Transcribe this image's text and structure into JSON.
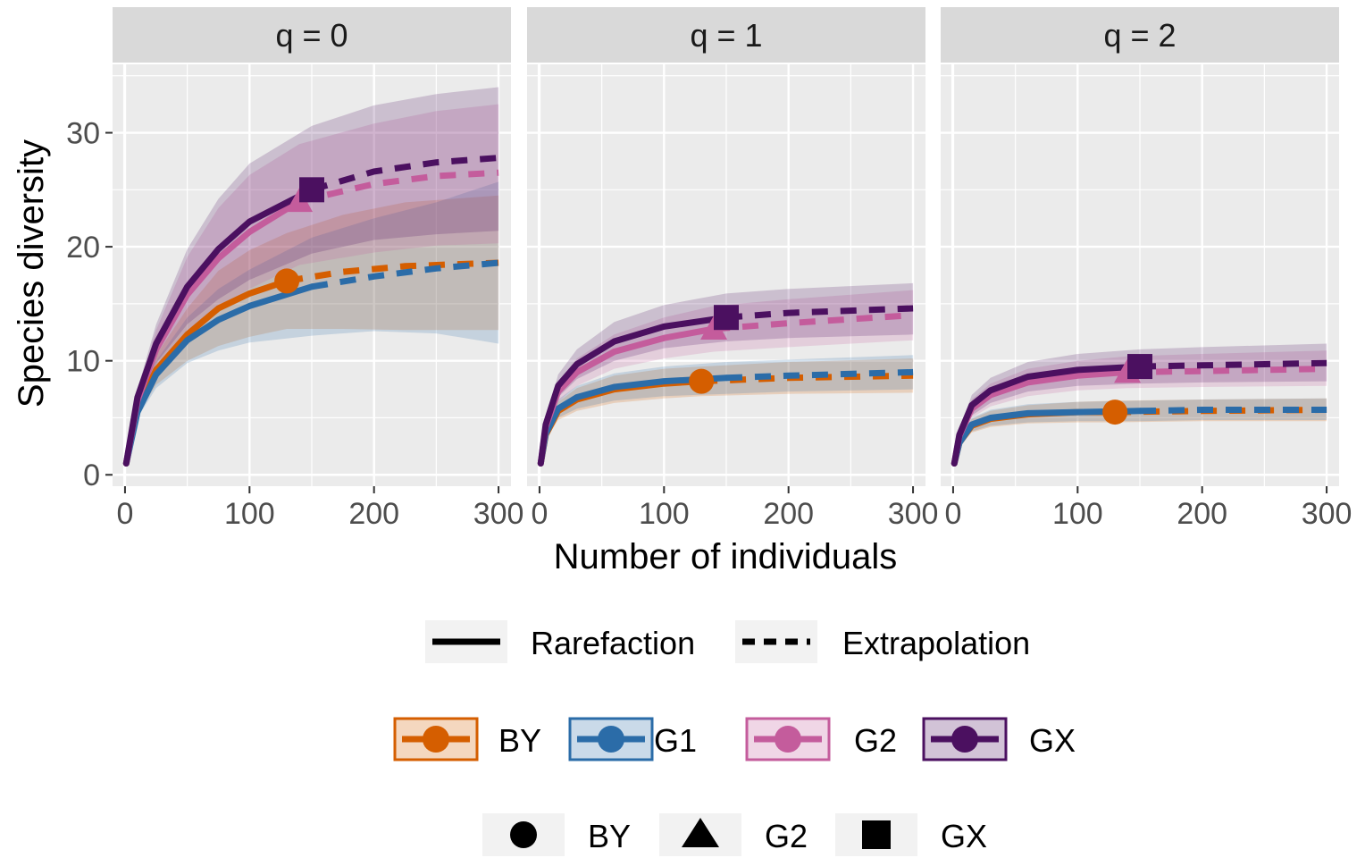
{
  "chart_data": {
    "type": "line",
    "xlabel": "Number of individuals",
    "ylabel": "Species diversity",
    "xlim": [
      -10,
      310
    ],
    "ylim": [
      -1,
      36
    ],
    "x_ticks": [
      0,
      100,
      200,
      300
    ],
    "x_tick_labels": [
      "0",
      "100",
      "200",
      "300"
    ],
    "y_ticks": [
      0,
      10,
      20,
      30
    ],
    "y_tick_labels": [
      "0",
      "10",
      "20",
      "30"
    ],
    "grid": true,
    "legend_position": "bottom",
    "colors": {
      "BY": "#D55E00",
      "G1": "#2B6CA8",
      "G2": "#C45C9C",
      "GX": "#4B1060",
      "panel_bg": "#EBEBEB",
      "strip_bg": "#D9D9D9",
      "grid": "#FFFFFF"
    },
    "panels": [
      {
        "label": "q = 0",
        "series": [
          {
            "name": "BY",
            "observed": [
              130,
              17.0
            ],
            "x": [
              1,
              10,
              25,
              50,
              75,
              100,
              130,
              175,
              225,
              300
            ],
            "y": [
              1.0,
              5.8,
              9.2,
              12.3,
              14.6,
              15.9,
              17.0,
              17.8,
              18.3,
              18.6
            ],
            "lower": [
              1.0,
              5.2,
              7.9,
              10.0,
              11.3,
              12.1,
              12.8,
              12.8,
              12.7,
              12.7
            ],
            "upper": [
              1.0,
              6.4,
              10.5,
              14.6,
              17.9,
              19.7,
              21.2,
              22.8,
              23.9,
              24.5
            ]
          },
          {
            "name": "G1",
            "observed": [
              150,
              16.5
            ],
            "x": [
              1,
              10,
              25,
              50,
              75,
              100,
              150,
              200,
              250,
              300
            ],
            "y": [
              1.0,
              5.5,
              8.8,
              11.8,
              13.6,
              14.8,
              16.5,
              17.4,
              18.1,
              18.6
            ],
            "lower": [
              1.0,
              5.0,
              7.6,
              9.8,
              10.9,
              11.6,
              12.2,
              12.6,
              12.4,
              11.5
            ],
            "upper": [
              1.0,
              6.0,
              10.0,
              13.8,
              16.3,
              18.0,
              20.8,
              22.5,
              23.9,
              25.7
            ]
          },
          {
            "name": "G2",
            "observed": [
              140,
              24.0
            ],
            "x": [
              1,
              10,
              25,
              50,
              75,
              100,
              140,
              200,
              250,
              300
            ],
            "y": [
              1.0,
              6.5,
              11.0,
              15.8,
              19.0,
              21.3,
              24.0,
              25.5,
              26.2,
              26.5
            ],
            "lower": [
              1.0,
              5.8,
              9.3,
              12.5,
              14.6,
              16.3,
              18.4,
              19.5,
              20.1,
              20.3
            ],
            "upper": [
              1.0,
              7.2,
              12.7,
              19.1,
              23.4,
              26.3,
              29.0,
              30.8,
              31.9,
              32.5
            ]
          },
          {
            "name": "GX",
            "observed": [
              150,
              25.0
            ],
            "x": [
              1,
              10,
              25,
              50,
              75,
              100,
              150,
              200,
              250,
              300
            ],
            "y": [
              1.0,
              6.8,
              11.5,
              16.5,
              19.8,
              22.2,
              25.0,
              26.6,
              27.4,
              27.8
            ],
            "lower": [
              1.0,
              6.1,
              9.8,
              13.2,
              15.4,
              17.1,
              19.4,
              20.6,
              21.1,
              21.4
            ],
            "upper": [
              1.0,
              7.5,
              13.2,
              19.8,
              24.2,
              27.3,
              30.6,
              32.4,
              33.4,
              34.0
            ]
          }
        ]
      },
      {
        "label": "q = 1",
        "series": [
          {
            "name": "BY",
            "observed": [
              130,
              8.2
            ],
            "x": [
              1,
              5,
              15,
              30,
              60,
              100,
              130,
              200,
              300
            ],
            "y": [
              1.0,
              3.5,
              5.6,
              6.6,
              7.5,
              8.0,
              8.2,
              8.5,
              8.7
            ],
            "lower": [
              1.0,
              3.1,
              4.8,
              5.6,
              6.3,
              6.7,
              6.9,
              7.1,
              7.2
            ],
            "upper": [
              1.0,
              3.9,
              6.4,
              7.6,
              8.7,
              9.3,
              9.5,
              9.9,
              10.2
            ]
          },
          {
            "name": "G1",
            "observed": [
              150,
              8.5
            ],
            "x": [
              1,
              5,
              15,
              30,
              60,
              100,
              150,
              200,
              300
            ],
            "y": [
              1.0,
              3.6,
              5.8,
              6.8,
              7.7,
              8.2,
              8.5,
              8.7,
              9.0
            ],
            "lower": [
              1.0,
              3.2,
              5.0,
              5.8,
              6.5,
              6.9,
              7.1,
              7.3,
              7.5
            ],
            "upper": [
              1.0,
              4.0,
              6.6,
              7.8,
              8.9,
              9.5,
              9.9,
              10.1,
              10.5
            ]
          },
          {
            "name": "G2",
            "observed": [
              140,
              12.8
            ],
            "x": [
              1,
              5,
              15,
              30,
              60,
              100,
              140,
              200,
              300
            ],
            "y": [
              1.0,
              4.2,
              7.3,
              9.0,
              10.8,
              12.0,
              12.8,
              13.3,
              14.0
            ],
            "lower": [
              1.0,
              3.8,
              6.4,
              7.8,
              9.3,
              10.2,
              10.8,
              11.2,
              11.8
            ],
            "upper": [
              1.0,
              4.6,
              8.2,
              10.2,
              12.3,
              13.8,
              14.8,
              15.4,
              16.2
            ]
          },
          {
            "name": "GX",
            "observed": [
              150,
              13.8
            ],
            "x": [
              1,
              5,
              15,
              30,
              60,
              100,
              150,
              200,
              300
            ],
            "y": [
              1.0,
              4.4,
              7.8,
              9.7,
              11.7,
              13.0,
              13.8,
              14.2,
              14.6
            ],
            "lower": [
              1.0,
              4.0,
              6.8,
              8.4,
              10.0,
              11.1,
              11.7,
              12.0,
              12.3
            ],
            "upper": [
              1.0,
              4.8,
              8.8,
              11.0,
              13.4,
              14.9,
              15.9,
              16.3,
              16.8
            ]
          }
        ]
      },
      {
        "label": "q = 2",
        "series": [
          {
            "name": "BY",
            "observed": [
              130,
              5.5
            ],
            "x": [
              1,
              5,
              15,
              30,
              60,
              100,
              130,
              200,
              300
            ],
            "y": [
              1.0,
              2.8,
              4.3,
              4.9,
              5.3,
              5.5,
              5.5,
              5.6,
              5.7
            ],
            "lower": [
              1.0,
              2.5,
              3.7,
              4.2,
              4.5,
              4.6,
              4.6,
              4.7,
              4.7
            ],
            "upper": [
              1.0,
              3.1,
              4.9,
              5.6,
              6.1,
              6.4,
              6.5,
              6.6,
              6.7
            ]
          },
          {
            "name": "G1",
            "observed": [
              150,
              5.6
            ],
            "x": [
              1,
              5,
              15,
              30,
              60,
              100,
              150,
              200,
              300
            ],
            "y": [
              1.0,
              2.8,
              4.4,
              5.0,
              5.4,
              5.5,
              5.6,
              5.7,
              5.7
            ],
            "lower": [
              1.0,
              2.5,
              3.8,
              4.3,
              4.6,
              4.7,
              4.7,
              4.8,
              4.8
            ],
            "upper": [
              1.0,
              3.1,
              5.0,
              5.7,
              6.2,
              6.4,
              6.5,
              6.6,
              6.7
            ]
          },
          {
            "name": "G2",
            "observed": [
              140,
              9.0
            ],
            "x": [
              1,
              5,
              15,
              30,
              60,
              100,
              140,
              200,
              300
            ],
            "y": [
              1.0,
              3.4,
              5.8,
              7.0,
              8.1,
              8.7,
              9.0,
              9.1,
              9.3
            ],
            "lower": [
              1.0,
              3.0,
              5.0,
              6.0,
              6.9,
              7.4,
              7.6,
              7.7,
              7.8
            ],
            "upper": [
              1.0,
              3.8,
              6.6,
              8.0,
              9.3,
              10.0,
              10.4,
              10.6,
              10.9
            ]
          },
          {
            "name": "GX",
            "observed": [
              150,
              9.5
            ],
            "x": [
              1,
              5,
              15,
              30,
              60,
              100,
              150,
              200,
              300
            ],
            "y": [
              1.0,
              3.5,
              6.1,
              7.4,
              8.6,
              9.2,
              9.5,
              9.6,
              9.8
            ],
            "lower": [
              1.0,
              3.1,
              5.2,
              6.3,
              7.3,
              7.8,
              8.0,
              8.1,
              8.2
            ],
            "upper": [
              1.0,
              3.9,
              7.0,
              8.5,
              9.9,
              10.6,
              11.0,
              11.2,
              11.5
            ]
          }
        ]
      }
    ],
    "legend": {
      "method": [
        "Rarefaction",
        "Extrapolation"
      ],
      "assemblage": [
        "BY",
        "G1",
        "G2",
        "GX"
      ],
      "shape": [
        {
          "label": "BY",
          "shape": "circle"
        },
        {
          "label": "G2",
          "shape": "triangle"
        },
        {
          "label": "GX",
          "shape": "square"
        }
      ]
    }
  }
}
